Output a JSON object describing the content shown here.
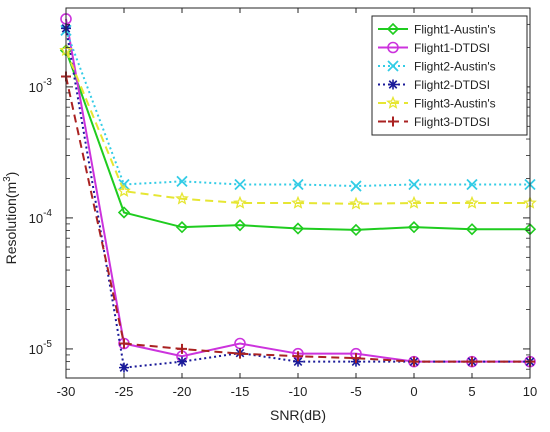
{
  "chart_data": {
    "type": "line",
    "xlabel": "SNR(dB)",
    "ylabel": "Resolution(m",
    "ylabel_superscript": "3",
    "ylabel_suffix": ")",
    "xlim": [
      -30,
      10
    ],
    "ylim": [
      6e-06,
      0.004
    ],
    "y_scale": "log",
    "grid": false,
    "legend_position": "top-right",
    "x": [
      -30,
      -25,
      -20,
      -15,
      -10,
      -5,
      0,
      5,
      10
    ],
    "x_tick_labels": [
      "-30",
      "-25",
      "-20",
      "-15",
      "-10",
      "-5",
      "0",
      "5",
      "10"
    ],
    "y_ticks": [
      {
        "value": 1e-05,
        "base": "10",
        "exp": "-5"
      },
      {
        "value": 0.0001,
        "base": "10",
        "exp": "-4"
      },
      {
        "value": 0.001,
        "base": "10",
        "exp": "-3"
      }
    ],
    "series": [
      {
        "name": "Flight1-Austin's",
        "color": "#1fcc1f",
        "dash": "solid",
        "marker": "diamond",
        "values": [
          0.0019,
          0.00011,
          8.5e-05,
          8.8e-05,
          8.3e-05,
          8.1e-05,
          8.5e-05,
          8.2e-05,
          8.2e-05
        ]
      },
      {
        "name": "Flight1-DTDSI",
        "color": "#cc33dd",
        "dash": "solid",
        "marker": "circle",
        "values": [
          0.0033,
          1.1e-05,
          8.8e-06,
          1.1e-05,
          9.2e-06,
          9.2e-06,
          8e-06,
          8e-06,
          8e-06
        ]
      },
      {
        "name": "Flight2-Austin's",
        "color": "#33cce6",
        "dash": "dot",
        "marker": "x",
        "values": [
          0.0027,
          0.00018,
          0.00019,
          0.00018,
          0.00018,
          0.000175,
          0.00018,
          0.00018,
          0.00018
        ]
      },
      {
        "name": "Flight2-DTDSI",
        "color": "#1a1a99",
        "dash": "dot",
        "marker": "asterisk",
        "values": [
          0.0028,
          7.2e-06,
          8e-06,
          9.3e-06,
          8e-06,
          8e-06,
          8e-06,
          8e-06,
          8e-06
        ]
      },
      {
        "name": "Flight3-Austin's",
        "color": "#e6e633",
        "dash": "dash",
        "marker": "star",
        "values": [
          0.0019,
          0.00016,
          0.00014,
          0.00013,
          0.00013,
          0.000128,
          0.00013,
          0.00013,
          0.00013
        ]
      },
      {
        "name": "Flight3-DTDSI",
        "color": "#aa2222",
        "dash": "dash",
        "marker": "plus",
        "values": [
          0.0012,
          1.1e-05,
          1e-05,
          9.2e-06,
          8.8e-06,
          8.5e-06,
          8e-06,
          8e-06,
          8e-06
        ]
      }
    ]
  }
}
